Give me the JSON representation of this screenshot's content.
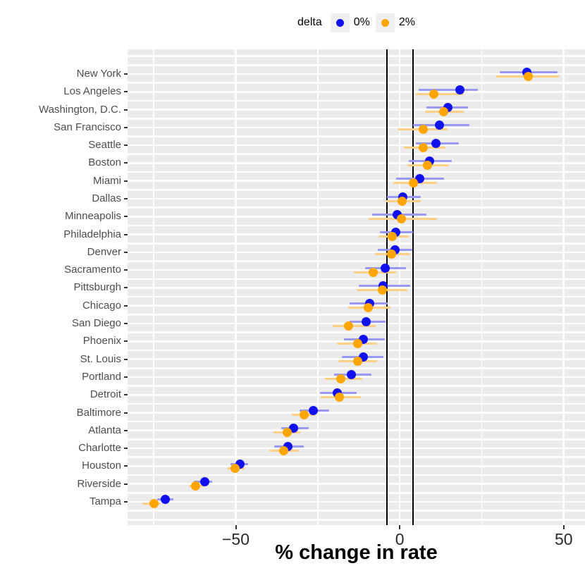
{
  "chart_data": {
    "type": "scatter",
    "subtype": "dot-interval-forest-plot",
    "xlabel": "% change in rate",
    "xlim": [
      -83,
      56.5
    ],
    "x_ticks": [
      {
        "value": -50,
        "label": "−50"
      },
      {
        "value": 0,
        "label": "0"
      },
      {
        "value": 50,
        "label": "50"
      }
    ],
    "x_minor_gridlines": [
      -75,
      -25,
      25
    ],
    "reference_lines": [
      -4,
      4
    ],
    "legend": {
      "title": "delta",
      "position": "top",
      "series": [
        {
          "name": "delta-0",
          "label": "0%",
          "point_color": "#1111EE",
          "interval_color": "#9898F7"
        },
        {
          "name": "delta-2",
          "label": "2%",
          "point_color": "#FFA500",
          "interval_color": "#FFCF87"
        }
      ]
    },
    "colors": {
      "panel_background": "#EBEBEB",
      "gridline": "#FFFFFF",
      "reference_line": "#000000",
      "axis_text": "#4D4D4D"
    },
    "rows": [
      {
        "city": "New York",
        "series": [
          {
            "name": "delta-0",
            "est": 38.7,
            "lo": 30.5,
            "hi": 48.2
          },
          {
            "name": "delta-2",
            "est": 39.2,
            "lo": 29.5,
            "hi": 48.5
          }
        ]
      },
      {
        "city": "Los Angeles",
        "series": [
          {
            "name": "delta-0",
            "est": 18.3,
            "lo": 5.8,
            "hi": 23.9
          },
          {
            "name": "delta-2",
            "est": 10.5,
            "lo": 4.9,
            "hi": 19.6
          }
        ]
      },
      {
        "city": "Washington, D.C.",
        "series": [
          {
            "name": "delta-0",
            "est": 14.8,
            "lo": 8.2,
            "hi": 20.8
          },
          {
            "name": "delta-2",
            "est": 13.5,
            "lo": 7.8,
            "hi": 19.6
          }
        ]
      },
      {
        "city": "San Francisco",
        "series": [
          {
            "name": "delta-0",
            "est": 12.1,
            "lo": 4.1,
            "hi": 21.2
          },
          {
            "name": "delta-2",
            "est": 7.1,
            "lo": -0.4,
            "hi": 14.5
          }
        ]
      },
      {
        "city": "Seattle",
        "series": [
          {
            "name": "delta-0",
            "est": 11.0,
            "lo": 4.9,
            "hi": 18.0
          },
          {
            "name": "delta-2",
            "est": 7.1,
            "lo": 1.2,
            "hi": 14.0
          }
        ]
      },
      {
        "city": "Boston",
        "series": [
          {
            "name": "delta-0",
            "est": 9.2,
            "lo": 2.8,
            "hi": 15.8
          },
          {
            "name": "delta-2",
            "est": 8.4,
            "lo": 2.4,
            "hi": 15.1
          }
        ]
      },
      {
        "city": "Miami",
        "series": [
          {
            "name": "delta-0",
            "est": 6.0,
            "lo": -1.0,
            "hi": 13.6
          },
          {
            "name": "delta-2",
            "est": 4.2,
            "lo": -1.9,
            "hi": 11.3
          }
        ]
      },
      {
        "city": "Dallas",
        "series": [
          {
            "name": "delta-0",
            "est": 0.9,
            "lo": -4.0,
            "hi": 6.5
          },
          {
            "name": "delta-2",
            "est": 0.7,
            "lo": -4.3,
            "hi": 6.4
          }
        ]
      },
      {
        "city": "Minneapolis",
        "series": [
          {
            "name": "delta-0",
            "est": -0.8,
            "lo": -8.5,
            "hi": 8.2
          },
          {
            "name": "delta-2",
            "est": 0.5,
            "lo": -9.4,
            "hi": 11.4
          }
        ]
      },
      {
        "city": "Philadelphia",
        "series": [
          {
            "name": "delta-0",
            "est": -1.3,
            "lo": -6.1,
            "hi": 4.0
          },
          {
            "name": "delta-2",
            "est": -2.2,
            "lo": -6.5,
            "hi": 2.7
          }
        ]
      },
      {
        "city": "Denver",
        "series": [
          {
            "name": "delta-0",
            "est": -1.4,
            "lo": -6.7,
            "hi": 3.8
          },
          {
            "name": "delta-2",
            "est": -2.4,
            "lo": -7.5,
            "hi": 3.1
          }
        ]
      },
      {
        "city": "Sacramento",
        "series": [
          {
            "name": "delta-0",
            "est": -4.4,
            "lo": -10.6,
            "hi": 2.0
          },
          {
            "name": "delta-2",
            "est": -8.1,
            "lo": -14.1,
            "hi": -1.0
          }
        ]
      },
      {
        "city": "Pittsburgh",
        "series": [
          {
            "name": "delta-0",
            "est": -5.1,
            "lo": -12.6,
            "hi": 3.3
          },
          {
            "name": "delta-2",
            "est": -5.2,
            "lo": -13.1,
            "hi": 2.3
          }
        ]
      },
      {
        "city": "Chicago",
        "series": [
          {
            "name": "delta-0",
            "est": -9.2,
            "lo": -15.2,
            "hi": -3.7
          },
          {
            "name": "delta-2",
            "est": -9.5,
            "lo": -15.8,
            "hi": -2.8
          }
        ]
      },
      {
        "city": "San Diego",
        "series": [
          {
            "name": "delta-0",
            "est": -10.3,
            "lo": -15.3,
            "hi": -4.4
          },
          {
            "name": "delta-2",
            "est": -15.7,
            "lo": -20.5,
            "hi": -7.4
          }
        ]
      },
      {
        "city": "Phoenix",
        "series": [
          {
            "name": "delta-0",
            "est": -11.0,
            "lo": -17.1,
            "hi": -4.5
          },
          {
            "name": "delta-2",
            "est": -12.9,
            "lo": -19.2,
            "hi": -7.0
          }
        ]
      },
      {
        "city": "St. Louis",
        "series": [
          {
            "name": "delta-0",
            "est": -11.2,
            "lo": -17.7,
            "hi": -5.0
          },
          {
            "name": "delta-2",
            "est": -12.9,
            "lo": -18.7,
            "hi": -6.9
          }
        ]
      },
      {
        "city": "Portland",
        "series": [
          {
            "name": "delta-0",
            "est": -14.8,
            "lo": -20.1,
            "hi": -8.7
          },
          {
            "name": "delta-2",
            "est": -18.0,
            "lo": -22.8,
            "hi": -11.5
          }
        ]
      },
      {
        "city": "Detroit",
        "series": [
          {
            "name": "delta-0",
            "est": -19.1,
            "lo": -24.4,
            "hi": -13.1
          },
          {
            "name": "delta-2",
            "est": -18.4,
            "lo": -24.1,
            "hi": -11.9
          }
        ]
      },
      {
        "city": "Baltimore",
        "series": [
          {
            "name": "delta-0",
            "est": -26.4,
            "lo": -30.6,
            "hi": -21.6
          },
          {
            "name": "delta-2",
            "est": -29.2,
            "lo": -33.0,
            "hi": -25.9
          }
        ]
      },
      {
        "city": "Atlanta",
        "series": [
          {
            "name": "delta-0",
            "est": -32.4,
            "lo": -36.1,
            "hi": -27.7
          },
          {
            "name": "delta-2",
            "est": -34.3,
            "lo": -38.5,
            "hi": -30.4
          }
        ]
      },
      {
        "city": "Charlotte",
        "series": [
          {
            "name": "delta-0",
            "est": -34.0,
            "lo": -38.3,
            "hi": -29.3
          },
          {
            "name": "delta-2",
            "est": -35.3,
            "lo": -39.9,
            "hi": -30.8
          }
        ]
      },
      {
        "city": "Houston",
        "series": [
          {
            "name": "delta-0",
            "est": -48.7,
            "lo": -51.7,
            "hi": -46.2
          },
          {
            "name": "delta-2",
            "est": -50.3,
            "lo": -52.7,
            "hi": -47.4
          }
        ]
      },
      {
        "city": "Riverside",
        "series": [
          {
            "name": "delta-0",
            "est": -59.5,
            "lo": -62.7,
            "hi": -57.2
          },
          {
            "name": "delta-2",
            "est": -62.2,
            "lo": -64.4,
            "hi": -59.5
          }
        ]
      },
      {
        "city": "Tampa",
        "series": [
          {
            "name": "delta-0",
            "est": -71.5,
            "lo": -74.0,
            "hi": -69.1
          },
          {
            "name": "delta-2",
            "est": -75.0,
            "lo": -78.5,
            "hi": -73.0
          }
        ]
      }
    ]
  }
}
